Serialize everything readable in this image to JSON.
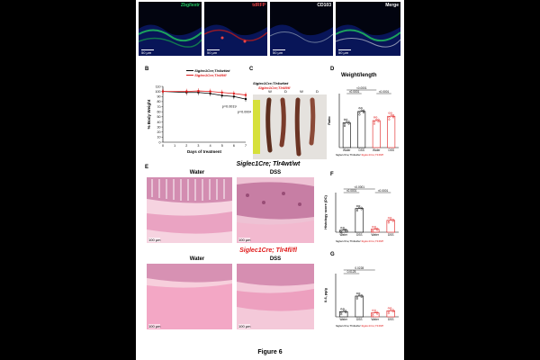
{
  "page": {
    "figure_caption": "Figure 6"
  },
  "panel_a": {
    "channels": [
      {
        "label": "Zbg/Iextr",
        "color": "#22c55e"
      },
      {
        "label": "tdRFP",
        "color": "#ef4444"
      },
      {
        "label": "CD103",
        "color": "#ffffff"
      },
      {
        "label": "Merge",
        "color": "#ffffff"
      }
    ],
    "scale_bar": "50 µm"
  },
  "panel_b": {
    "letter": "B",
    "legend": [
      {
        "label": "Siglec1Cre;Tlr4wt/wt",
        "color": "#000000"
      },
      {
        "label": "Siglec1Cre;Tlr4fl/fl",
        "color": "#e01b1b"
      }
    ],
    "chart_data": {
      "type": "line",
      "ylabel": "% Body Weight",
      "xlabel": "Days of treatment",
      "x": [
        0,
        1,
        2,
        3,
        4,
        5,
        6,
        7
      ],
      "ylim": [
        0,
        110
      ],
      "yticks": [
        0,
        10,
        20,
        30,
        40,
        50,
        60,
        70,
        80,
        90,
        100,
        110
      ],
      "series": [
        {
          "name": "Siglec1Cre;Tlr4wt/wt",
          "color": "#000000",
          "x": [
            0,
            2,
            3,
            4,
            5,
            6,
            7
          ],
          "values": [
            100,
            98,
            98,
            96,
            92,
            90,
            85
          ]
        },
        {
          "name": "Siglec1Cre;Tlr4fl/fl",
          "color": "#e01b1b",
          "x": [
            0,
            2,
            3,
            4,
            5,
            6,
            7
          ],
          "values": [
            100,
            100,
            101,
            100,
            98,
            96,
            93
          ]
        }
      ],
      "annotations": [
        "p=0.0019",
        "p=0.0004"
      ]
    }
  },
  "panel_c": {
    "letter": "C",
    "group1": "Siglec1Cre;Tlr4wt/wt",
    "group2": "Siglec1Cre;Tlr4fl/fl",
    "lanes": [
      "W",
      "D",
      "W",
      "D"
    ]
  },
  "panel_d": {
    "letter": "D",
    "title": "Weight/length",
    "chart_data": {
      "type": "bar",
      "ylabel": "Ratio",
      "categories": [
        "Water",
        "DSS",
        "Water",
        "DSS"
      ],
      "values": [
        4.6,
        6.7,
        5.0,
        5.8
      ],
      "colors": [
        "#000000",
        "#000000",
        "#e01b1b",
        "#e01b1b"
      ],
      "ylim": [
        0,
        10
      ],
      "annotations": [
        "<0.0001",
        "<0.0001",
        "<0.0001"
      ]
    },
    "group1": "Siglec1Cre;Tlr4wt/wt",
    "group2": "Siglec1Cre;Tlr4fl/fl"
  },
  "panel_e": {
    "letter": "E",
    "top_title": "Siglec1Cre; Tlr4wt/wt",
    "bottom_title": "Siglec1Cre; Tlr4fl/fl",
    "col_water": "Water",
    "col_dss": "DSS",
    "scale_bar": "100 µm"
  },
  "panel_f": {
    "letter": "F",
    "chart_data": {
      "type": "bar",
      "ylabel": "Histology score (DC)",
      "categories": [
        "Water",
        "DSS",
        "Water",
        "DSS"
      ],
      "values": [
        1,
        12,
        1.5,
        6
      ],
      "colors": [
        "#000000",
        "#000000",
        "#e01b1b",
        "#e01b1b"
      ],
      "ylim": [
        0,
        20
      ],
      "annotations": [
        "<0.0001",
        "<0.0001",
        "<0.0001"
      ]
    },
    "group1": "Siglec1Cre;Tlr4wt/wt",
    "group2": "Siglec1Cre;Tlr4fl/fl"
  },
  "panel_g": {
    "letter": "G",
    "chart_data": {
      "type": "bar",
      "ylabel": "Il-6, pg/g",
      "categories": [
        "Water",
        "DSS",
        "Water",
        "DSS"
      ],
      "values": [
        1.2,
        4.8,
        0.9,
        1.4
      ],
      "colors": [
        "#000000",
        "#000000",
        "#e01b1b",
        "#e01b1b"
      ],
      "ylim": [
        0,
        10
      ],
      "annotations": [
        "0.0228",
        "0.0125"
      ]
    },
    "group1": "Siglec1Cre;Tlr4wt/wt",
    "group2": "Siglec1Cre;Tlr4fl/fl"
  }
}
